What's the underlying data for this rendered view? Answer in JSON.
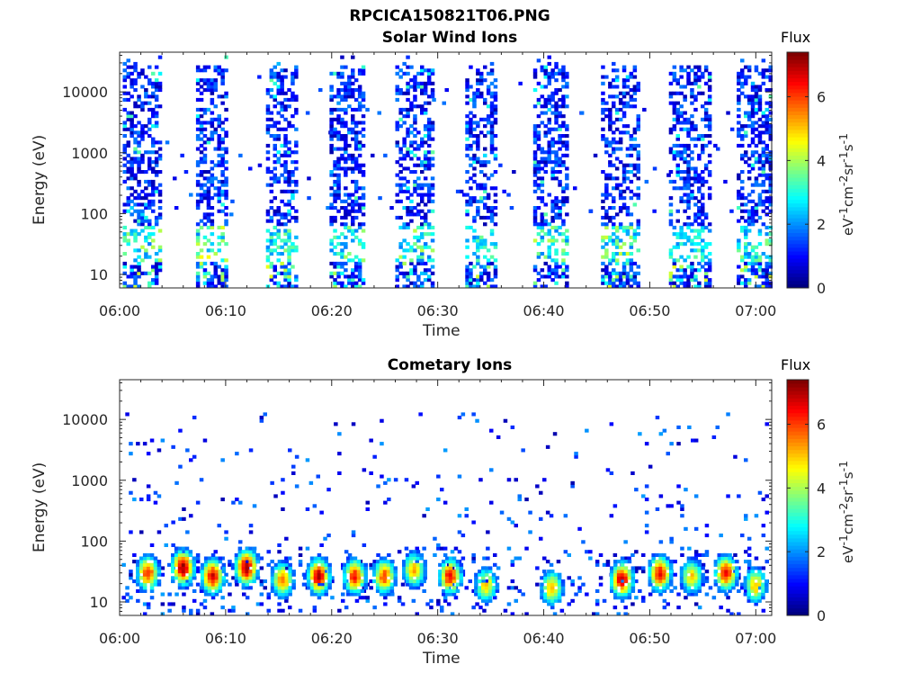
{
  "figure_title": "RPCICA150821T06.PNG",
  "colorbar": {
    "title": "Flux",
    "unit_base": [
      "eV",
      "cm",
      "sr",
      "s"
    ],
    "unit_exp": [
      "-1",
      "-2",
      "-1",
      "-1"
    ],
    "ticks": [
      "0",
      "2",
      "4",
      "6"
    ],
    "range": [
      0,
      7.4
    ],
    "colormap": "jet"
  },
  "chart_data": [
    {
      "type": "heatmap",
      "title": "Solar Wind Ions",
      "xlabel": "Time",
      "ylabel": "Energy (eV)",
      "x_ticks": [
        "06:00",
        "06:10",
        "06:20",
        "06:30",
        "06:40",
        "06:50",
        "07:00"
      ],
      "x_range_minutes": [
        0,
        61.5
      ],
      "y_ticks": [
        "10",
        "100",
        "1000",
        "10000"
      ],
      "y_scale": "log",
      "y_range": [
        6,
        45000
      ],
      "bursts": [
        {
          "start_min": 0.3,
          "end_min": 3.8,
          "low_flux_band_eV": [
            15,
            60
          ],
          "low_flux_peak": 4.2
        },
        {
          "start_min": 7.2,
          "end_min": 10.2,
          "low_flux_band_eV": [
            15,
            60
          ],
          "low_flux_peak": 4.6
        },
        {
          "start_min": 13.8,
          "end_min": 16.8,
          "low_flux_band_eV": [
            15,
            60
          ],
          "low_flux_peak": 3.8
        },
        {
          "start_min": 19.8,
          "end_min": 23.0,
          "low_flux_band_eV": [
            15,
            60
          ],
          "low_flux_peak": 4.0
        },
        {
          "start_min": 26.0,
          "end_min": 29.4,
          "low_flux_band_eV": [
            15,
            60
          ],
          "low_flux_peak": 4.2
        },
        {
          "start_min": 32.6,
          "end_min": 35.6,
          "low_flux_band_eV": [
            15,
            60
          ],
          "low_flux_peak": 3.6
        },
        {
          "start_min": 39.0,
          "end_min": 42.2,
          "low_flux_band_eV": [
            15,
            60
          ],
          "low_flux_peak": 4.2
        },
        {
          "start_min": 45.4,
          "end_min": 48.8,
          "low_flux_band_eV": [
            15,
            60
          ],
          "low_flux_peak": 4.4
        },
        {
          "start_min": 51.8,
          "end_min": 55.6,
          "low_flux_band_eV": [
            15,
            60
          ],
          "low_flux_peak": 3.6
        },
        {
          "start_min": 58.2,
          "end_min": 61.3,
          "low_flux_band_eV": [
            15,
            60
          ],
          "low_flux_peak": 3.8
        }
      ]
    },
    {
      "type": "heatmap",
      "title": "Cometary Ions",
      "xlabel": "Time",
      "ylabel": "Energy (eV)",
      "x_ticks": [
        "06:00",
        "06:10",
        "06:20",
        "06:30",
        "06:40",
        "06:50",
        "07:00"
      ],
      "x_range_minutes": [
        0,
        61.5
      ],
      "y_ticks": [
        "10",
        "100",
        "1000",
        "10000"
      ],
      "y_scale": "log",
      "y_range": [
        6,
        45000
      ],
      "bursts": [
        {
          "center_min": 2.5,
          "peak_eV": 28,
          "peak_flux": 6.2
        },
        {
          "center_min": 5.8,
          "peak_eV": 35,
          "peak_flux": 7.2
        },
        {
          "center_min": 8.6,
          "peak_eV": 25,
          "peak_flux": 6.8
        },
        {
          "center_min": 11.8,
          "peak_eV": 35,
          "peak_flux": 7.3
        },
        {
          "center_min": 15.2,
          "peak_eV": 22,
          "peak_flux": 5.6
        },
        {
          "center_min": 18.6,
          "peak_eV": 25,
          "peak_flux": 7.1
        },
        {
          "center_min": 22.0,
          "peak_eV": 25,
          "peak_flux": 6.4
        },
        {
          "center_min": 24.8,
          "peak_eV": 25,
          "peak_flux": 6.0
        },
        {
          "center_min": 27.6,
          "peak_eV": 32,
          "peak_flux": 5.2
        },
        {
          "center_min": 31.0,
          "peak_eV": 25,
          "peak_flux": 6.6
        },
        {
          "center_min": 34.4,
          "peak_eV": 18,
          "peak_flux": 5.0
        },
        {
          "center_min": 40.6,
          "peak_eV": 16,
          "peak_flux": 5.2
        },
        {
          "center_min": 47.2,
          "peak_eV": 22,
          "peak_flux": 6.9
        },
        {
          "center_min": 50.8,
          "peak_eV": 28,
          "peak_flux": 6.6
        },
        {
          "center_min": 53.8,
          "peak_eV": 25,
          "peak_flux": 5.0
        },
        {
          "center_min": 57.0,
          "peak_eV": 28,
          "peak_flux": 6.5
        },
        {
          "center_min": 59.8,
          "peak_eV": 18,
          "peak_flux": 5.2
        }
      ]
    }
  ]
}
